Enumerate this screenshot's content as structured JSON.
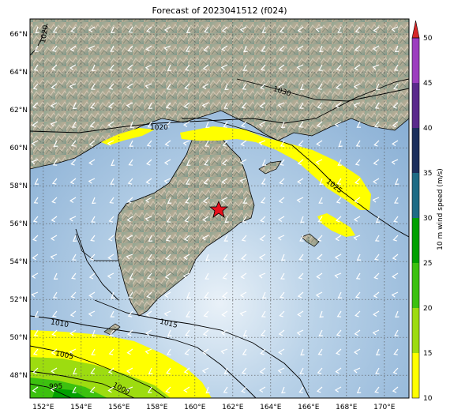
{
  "title": "Forecast of 2023041512 (f024)",
  "map": {
    "lon_labels": [
      "152°E",
      "154°E",
      "156°E",
      "158°E",
      "160°E",
      "162°E",
      "164°E",
      "166°E",
      "168°E",
      "170°E"
    ],
    "lat_labels": [
      "66°N",
      "64°N",
      "62°N",
      "60°N",
      "58°N",
      "56°N",
      "54°N",
      "52°N",
      "50°N",
      "48°N"
    ],
    "marker": {
      "label": "star",
      "lon": 161.4,
      "lat": 56.7
    },
    "isobar_labels": [
      "1020",
      "1030",
      "1020",
      "1025",
      "1010",
      "1015",
      "1005",
      "1000",
      "995"
    ],
    "colors": {
      "ocean_deep": "#7fa7cf",
      "ocean_light": "#c5dced",
      "land_green": "#7f9a86",
      "land_tan": "#c7b7a0",
      "grid": "#555555",
      "wind_barb": "#ffffff",
      "marker": "#e8101c"
    }
  },
  "colorbar": {
    "label": "10 m wind speed (m/s)",
    "ticks": [
      "50",
      "45",
      "40",
      "35",
      "30",
      "25",
      "20",
      "15",
      "10"
    ],
    "levels": [
      {
        "from": 10,
        "to": 15,
        "color": "#ffff00"
      },
      {
        "from": 15,
        "to": 20,
        "color": "#9ddc10"
      },
      {
        "from": 20,
        "to": 25,
        "color": "#3cc10f"
      },
      {
        "from": 25,
        "to": 30,
        "color": "#00a000"
      },
      {
        "from": 30,
        "to": 35,
        "color": "#1e6b85"
      },
      {
        "from": 35,
        "to": 40,
        "color": "#1c2f5c"
      },
      {
        "from": 40,
        "to": 45,
        "color": "#5a2a8c"
      },
      {
        "from": 45,
        "to": 50,
        "color": "#9c3dbf"
      },
      {
        "from": 50,
        "to": 55,
        "color": "#d62728"
      }
    ]
  }
}
